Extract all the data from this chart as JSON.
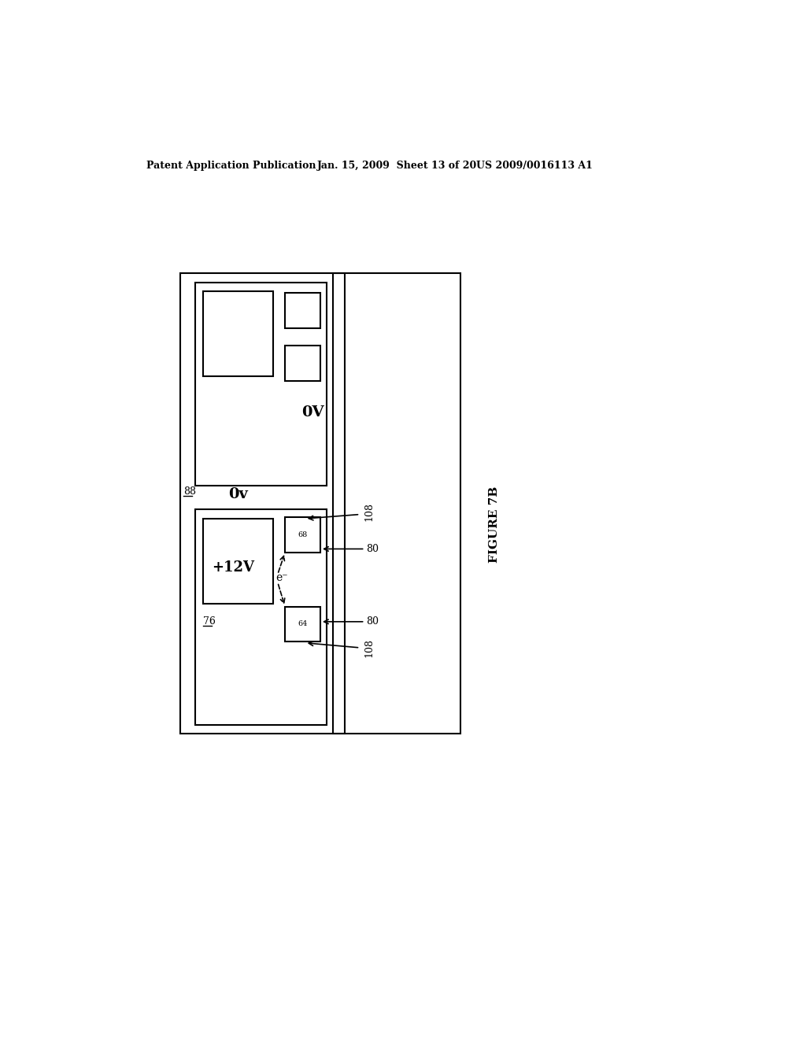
{
  "bg_color": "#ffffff",
  "header_left": "Patent Application Publication",
  "header_mid": "Jan. 15, 2009  Sheet 13 of 20",
  "header_right": "US 2009/0016113 A1",
  "figure_label": "FIGURE 7B",
  "label_88": "88",
  "label_76": "76",
  "label_68": "68",
  "label_64": "64",
  "label_80_top": "80",
  "label_80_bot": "80",
  "label_108_top": "108",
  "label_108_bot": "108",
  "label_0v_inner": "0V",
  "label_0v_outer": "0v",
  "label_12v": "+12V",
  "label_eminus": "e⁻"
}
